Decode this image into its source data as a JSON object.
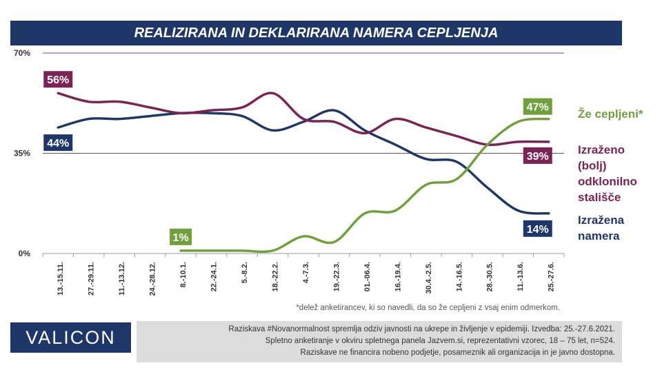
{
  "title": "REALIZIRANA IN DEKLARIRANA NAMERA CEPLJENJA",
  "footnote": "*delež anketirancev, ki so navedli, da so že cepljeni z vsaj enim odmerkom.",
  "logo": "VALICON",
  "info_lines": [
    "Raziskava #Novanormalnost spremlja odziv javnosti na ukrepe in življenje v epidemiji. Izvedba: 25.-27.6.2021.",
    "Spletno anketiranje v okviru spletnega panela Jazvem.si, reprezentativni vzorec, 18 – 75 let, n=524.",
    "Raziskave ne financira nobeno podjetje, posameznik ali organizacija in je javno dostopna."
  ],
  "legend": [
    {
      "text": "Že cepljeni*",
      "color": "#70a03c"
    },
    {
      "text": "Izraženo (bolj) odklonilno stališče",
      "color": "#7b2256"
    },
    {
      "text": "Izražena namera",
      "color": "#1f3768"
    }
  ],
  "chart_data": {
    "type": "line",
    "categories": [
      "13.-15.11.",
      "27.-29.11.",
      "11.-13.12.",
      "24.-28.12.",
      "8.-10.1.",
      "22.-24.1.",
      "5.-8.2.",
      "18.-22.2.",
      "4.-7.3.",
      "19.-22.3.",
      "01.-06.4.",
      "16.-19.4.",
      "30.4.-2.5.",
      "14.-16.5.",
      "28.-30.5.",
      "11.-13.6.",
      "25.-27.6."
    ],
    "ylim": [
      0,
      70
    ],
    "yticks": [
      "0%",
      "35%",
      "70%"
    ],
    "series": [
      {
        "name": "Izražena namera",
        "color": "#1f3768",
        "values": [
          44,
          47,
          47,
          48,
          49,
          49,
          48,
          43,
          46,
          50,
          43,
          38,
          33,
          32,
          23,
          15,
          14
        ],
        "labels": [
          {
            "index": 0,
            "text": "44%"
          },
          {
            "index": 16,
            "text": "14%"
          }
        ]
      },
      {
        "name": "Izraženo (bolj) odklonilno stališče",
        "color": "#7b2256",
        "values": [
          56,
          53,
          53,
          51,
          49,
          50,
          51,
          56,
          47,
          46,
          42,
          47,
          44,
          41,
          38,
          39,
          39
        ],
        "labels": [
          {
            "index": 0,
            "text": "56%"
          },
          {
            "index": 16,
            "text": "39%"
          }
        ]
      },
      {
        "name": "Že cepljeni*",
        "color": "#70a03c",
        "values": [
          null,
          null,
          null,
          null,
          1,
          1,
          1,
          1,
          6,
          4,
          14,
          15,
          24,
          26,
          38,
          46,
          47
        ],
        "labels": [
          {
            "index": 4,
            "text": "1%"
          },
          {
            "index": 16,
            "text": "47%"
          }
        ]
      }
    ]
  }
}
